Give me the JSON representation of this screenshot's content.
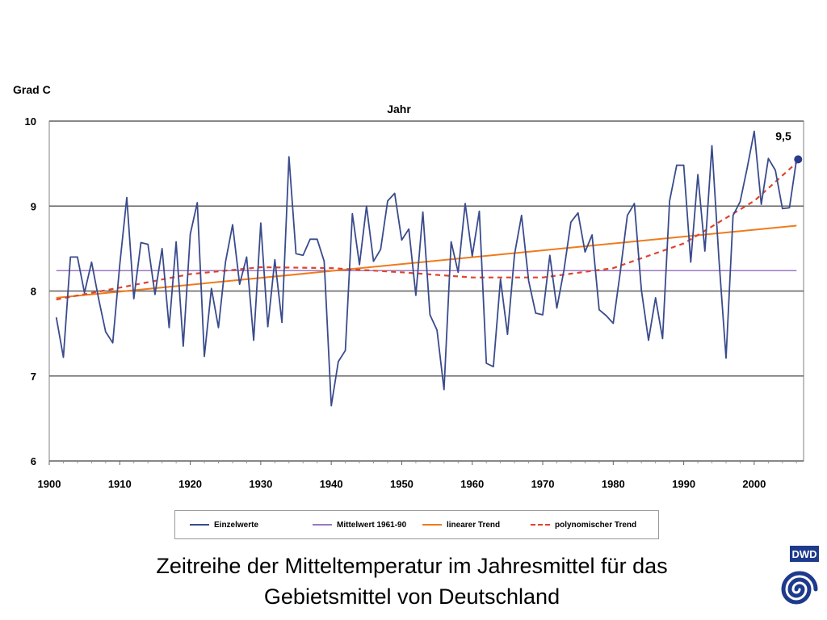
{
  "chart_data": {
    "type": "line",
    "title": "Jahr",
    "ylabel": "Grad C",
    "xlabel": "",
    "xlim": [
      1900,
      2007
    ],
    "ylim": [
      6,
      10
    ],
    "x_ticks": [
      "1900",
      "1910",
      "1920",
      "1930",
      "1940",
      "1950",
      "1960",
      "1970",
      "1980",
      "1990",
      "2000"
    ],
    "y_ticks": [
      "6",
      "7",
      "8",
      "9",
      "10"
    ],
    "grid": true,
    "legend_position": "bottom",
    "annotation": {
      "label": "9,5",
      "x": 2006,
      "y": 9.55
    },
    "series": [
      {
        "name": "Einzelwerte",
        "color": "#3a4b8c",
        "style": "solid",
        "x": [
          1901,
          1902,
          1903,
          1904,
          1905,
          1906,
          1907,
          1908,
          1909,
          1910,
          1911,
          1912,
          1913,
          1914,
          1915,
          1916,
          1917,
          1918,
          1919,
          1920,
          1921,
          1922,
          1923,
          1924,
          1925,
          1926,
          1927,
          1928,
          1929,
          1930,
          1931,
          1932,
          1933,
          1934,
          1935,
          1936,
          1937,
          1938,
          1939,
          1940,
          1941,
          1942,
          1943,
          1944,
          1945,
          1946,
          1947,
          1948,
          1949,
          1950,
          1951,
          1952,
          1953,
          1954,
          1955,
          1956,
          1957,
          1958,
          1959,
          1960,
          1961,
          1962,
          1963,
          1964,
          1965,
          1966,
          1967,
          1968,
          1969,
          1970,
          1971,
          1972,
          1973,
          1974,
          1975,
          1976,
          1977,
          1978,
          1979,
          1980,
          1981,
          1982,
          1983,
          1984,
          1985,
          1986,
          1987,
          1988,
          1989,
          1990,
          1991,
          1992,
          1993,
          1994,
          1995,
          1996,
          1997,
          1998,
          1999,
          2000,
          2001,
          2002,
          2003,
          2004,
          2005,
          2006
        ],
        "values": [
          7.69,
          7.22,
          8.4,
          8.4,
          7.98,
          8.34,
          7.91,
          7.52,
          7.39,
          8.31,
          9.1,
          7.91,
          8.57,
          8.55,
          7.96,
          8.5,
          7.57,
          8.58,
          7.35,
          8.67,
          9.04,
          7.23,
          8.03,
          7.57,
          8.34,
          8.78,
          8.08,
          8.4,
          7.42,
          8.8,
          7.58,
          8.37,
          7.63,
          9.58,
          8.44,
          8.42,
          8.61,
          8.61,
          8.35,
          6.65,
          7.17,
          7.3,
          8.91,
          8.31,
          9.0,
          8.35,
          8.49,
          9.06,
          9.15,
          8.6,
          8.73,
          7.95,
          8.93,
          7.72,
          7.54,
          6.84,
          8.58,
          8.22,
          9.03,
          8.41,
          8.94,
          7.15,
          7.11,
          8.14,
          7.49,
          8.43,
          8.89,
          8.12,
          7.74,
          7.72,
          8.42,
          7.8,
          8.24,
          8.81,
          8.92,
          8.46,
          8.66,
          7.78,
          7.71,
          7.62,
          8.22,
          8.89,
          9.03,
          8.01,
          7.42,
          7.92,
          7.44,
          9.06,
          9.48,
          9.48,
          8.34,
          9.37,
          8.47,
          9.71,
          8.36,
          7.21,
          8.89,
          9.05,
          9.45,
          9.88,
          9.02,
          9.56,
          9.42,
          8.97,
          8.98,
          9.55
        ]
      },
      {
        "name": "Mittelwert 1961-90",
        "color": "#9b78c0",
        "style": "solid",
        "x": [
          1901,
          2006
        ],
        "values": [
          8.24,
          8.24
        ]
      },
      {
        "name": "linearer Trend",
        "color": "#f07a1c",
        "style": "solid",
        "x": [
          1901,
          2006
        ],
        "values": [
          7.92,
          8.77
        ]
      },
      {
        "name": "polynomischer Trend",
        "color": "#e0442c",
        "style": "dashed",
        "x": [
          1901,
          1910,
          1920,
          1930,
          1940,
          1950,
          1960,
          1970,
          1980,
          1990,
          2000,
          2006
        ],
        "values": [
          7.9,
          8.04,
          8.2,
          8.28,
          8.27,
          8.22,
          8.16,
          8.16,
          8.27,
          8.56,
          9.06,
          9.51
        ]
      }
    ]
  },
  "caption": {
    "line1": "Zeitreihe der Mitteltemperatur im Jahresmittel für das",
    "line2": "Gebietsmittel von Deutschland"
  },
  "logo": {
    "text": "DWD",
    "color": "#1e3a8c"
  }
}
